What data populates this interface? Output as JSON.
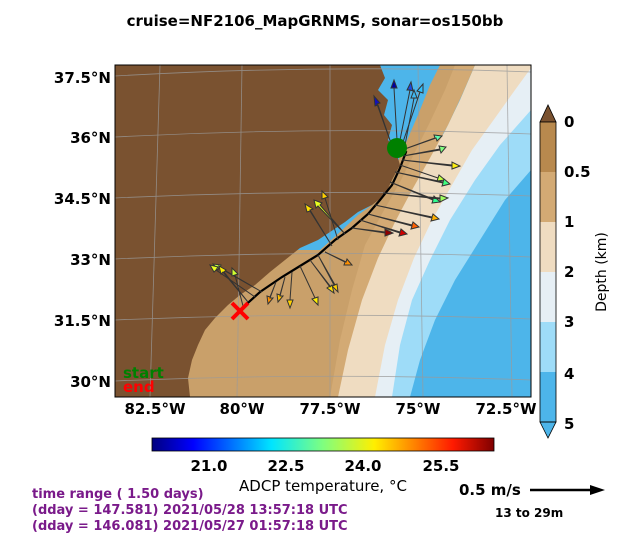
{
  "title": "cruise=NF2106_MapGRNMS,   sonar=os150bb",
  "map": {
    "lat_ticks": [
      "37.5°N",
      "36°N",
      "34.5°N",
      "33°N",
      "31.5°N",
      "30°N"
    ],
    "lon_ticks": [
      "82.5°W",
      "80°W",
      "77.5°W",
      "75°W",
      "72.5°W"
    ],
    "start_label": "start",
    "end_label": "end",
    "colors": {
      "start": "#008000",
      "end": "#ff0000",
      "land": "#7a5230",
      "shelf": "#c9a06a",
      "deep": "#4db3e6"
    }
  },
  "depth_colorbar": {
    "ticks": [
      "0",
      "0.5",
      "1",
      "2",
      "3",
      "4",
      "5"
    ],
    "title": "Depth (km)",
    "colors": [
      "#b8894e",
      "#d3aa74",
      "#efdcc1",
      "#e6eff5",
      "#9edcf8",
      "#4db5ea"
    ]
  },
  "temp_colorbar": {
    "ticks": [
      "21.0",
      "22.5",
      "24.0",
      "25.5"
    ],
    "title": "ADCP temperature, °C"
  },
  "info": {
    "line1": "time range ( 1.50 days)",
    "line2": "(dday = 147.581) 2021/05/28 13:57:18 UTC",
    "line3": "(dday = 146.081) 2021/05/27 01:57:18 UTC"
  },
  "scale": {
    "label": "0.5 m/s",
    "depth_range": "13 to 29m"
  }
}
